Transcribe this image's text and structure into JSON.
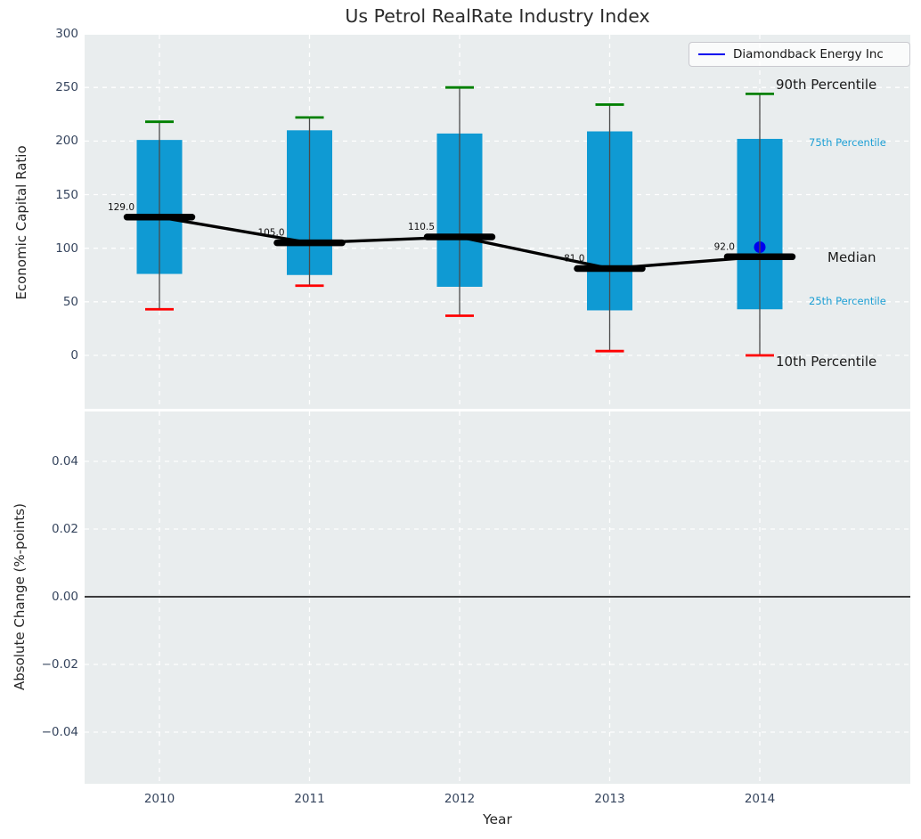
{
  "title": "Us Petrol RealRate Industry Index",
  "legend": {
    "label": "Diamondback Energy Inc",
    "line_color": "#0000ee",
    "position": "upper right"
  },
  "axes": {
    "top_ylabel": "Economic Capital Ratio",
    "top_ytick_labels": [
      "300",
      "250",
      "200",
      "150",
      "100",
      "50",
      "0"
    ],
    "bottom_ylabel": "Absolute Change (%-points)",
    "bottom_ytick_labels": [
      "0.04",
      "0.02",
      "0.00",
      "−0.02",
      "−0.04"
    ],
    "xlabel": "Year",
    "xtick_labels": [
      "2010",
      "2011",
      "2012",
      "2013",
      "2014"
    ]
  },
  "annotations": {
    "p90": "90th Percentile",
    "p75": "75th Percentile",
    "median": "Median",
    "p25": "25th Percentile",
    "p10": "10th Percentile"
  },
  "colors": {
    "box_fill": "#0f9ad3",
    "p90_cap": "#008000",
    "p10_cap": "#ff0000",
    "median_line": "#000000",
    "company_point": "#0000ee",
    "whisker": "#4a4a4a",
    "gridline": "#ffffff",
    "panel_background": "#e9edee",
    "tick_text": "#36455e",
    "percentile_text_cyan": "#1d9fd4",
    "zero_line": "#000000"
  },
  "chart_data": [
    {
      "type": "boxplot",
      "title": "Us Petrol RealRate Industry Index",
      "xlabel": "Year",
      "ylabel": "Economic Capital Ratio",
      "ylim": [
        -50,
        300
      ],
      "ytick_values": [
        300,
        250,
        200,
        150,
        100,
        50,
        0
      ],
      "grid": true,
      "legend_position": "upper right",
      "categories": [
        "2010",
        "2011",
        "2012",
        "2013",
        "2014"
      ],
      "series": [
        {
          "name": "90th Percentile",
          "values": [
            218,
            222,
            250,
            234,
            244
          ]
        },
        {
          "name": "75th Percentile",
          "values": [
            201,
            210,
            207,
            209,
            202
          ]
        },
        {
          "name": "Median",
          "values": [
            129.0,
            105.0,
            110.5,
            81.0,
            92.0
          ]
        },
        {
          "name": "25th Percentile",
          "values": [
            76,
            75,
            64,
            42,
            43
          ]
        },
        {
          "name": "10th Percentile",
          "values": [
            43,
            65,
            37,
            4,
            0
          ]
        }
      ],
      "median_labels": [
        "129.0",
        "105.0",
        "110.5",
        "81.0",
        "92.0"
      ],
      "company_point": {
        "name": "Diamondback Energy Inc",
        "category": "2014",
        "value": 101
      }
    },
    {
      "type": "line",
      "ylabel": "Absolute Change (%-points)",
      "ylim": [
        -0.055,
        0.055
      ],
      "yticks": [
        0.04,
        0.02,
        0.0,
        -0.02,
        -0.04
      ],
      "grid": true,
      "series": [],
      "reference_line_y": 0.0
    }
  ]
}
